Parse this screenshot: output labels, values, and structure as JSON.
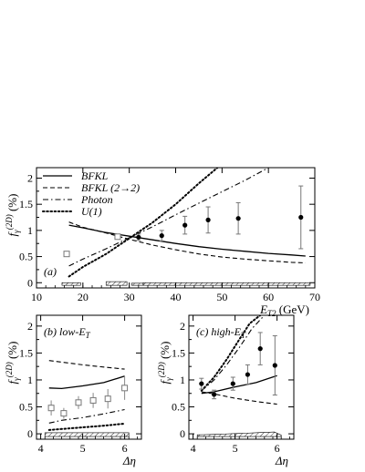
{
  "chart_data": [
    {
      "id": "a",
      "type": "line",
      "panel_label": "(a)",
      "ylabel": "f",
      "ylabel_sub": "γ",
      "ylabel_sup": "(2D)",
      "ylabel_unit": "(%)",
      "xlabel": "E",
      "xlabel_sub": "T2",
      "xlabel_unit": "(GeV)",
      "xlim": [
        10,
        70
      ],
      "ylim": [
        -0.1,
        2.2
      ],
      "xticks": [
        "10",
        "20",
        "30",
        "40",
        "50",
        "60",
        "70"
      ],
      "yticks": [
        "0",
        "0.5",
        "1",
        "1.5",
        "2"
      ],
      "legend": [
        "BFKL",
        "BFKL (2→2)",
        "Photon",
        "U(1)"
      ],
      "series": [
        {
          "name": "BFKL",
          "style": "solid",
          "x": [
            17,
            20,
            25,
            30,
            35,
            40,
            45,
            50,
            55,
            60,
            65,
            68
          ],
          "y": [
            1.1,
            1.05,
            0.96,
            0.89,
            0.82,
            0.75,
            0.69,
            0.64,
            0.6,
            0.56,
            0.53,
            0.51
          ]
        },
        {
          "name": "BFKL (2→2)",
          "style": "dashed",
          "x": [
            17,
            20,
            25,
            30,
            35,
            40,
            45,
            50,
            55,
            60,
            65,
            68
          ],
          "y": [
            1.16,
            1.06,
            0.95,
            0.83,
            0.72,
            0.63,
            0.55,
            0.49,
            0.45,
            0.42,
            0.39,
            0.38
          ]
        },
        {
          "name": "Photon",
          "style": "dashdot",
          "x": [
            17,
            20,
            25,
            30,
            35,
            40,
            45,
            50,
            55,
            60
          ],
          "y": [
            0.32,
            0.45,
            0.65,
            0.86,
            1.07,
            1.3,
            1.52,
            1.74,
            1.96,
            2.2
          ]
        },
        {
          "name": "U(1)",
          "style": "dotted",
          "x": [
            17,
            20,
            25,
            30,
            35,
            40,
            45,
            49
          ],
          "y": [
            0.12,
            0.3,
            0.55,
            0.85,
            1.15,
            1.5,
            1.9,
            2.2
          ]
        }
      ],
      "points_filled": [
        {
          "x": 32,
          "y": 0.87,
          "err": 0.06
        },
        {
          "x": 37,
          "y": 0.9,
          "err": 0.1
        },
        {
          "x": 42,
          "y": 1.1,
          "err": 0.17
        },
        {
          "x": 47,
          "y": 1.2,
          "err": 0.25
        },
        {
          "x": 53.5,
          "y": 1.23,
          "err": 0.3
        },
        {
          "x": 67,
          "y": 1.25,
          "err": 0.6
        }
      ],
      "points_open": [
        {
          "x": 16.5,
          "y": 0.55,
          "err": 0.04
        },
        {
          "x": 27.5,
          "y": 0.88,
          "err": 0.05
        }
      ],
      "syst_bands": [
        {
          "x0": 15.5,
          "x1": 19.5,
          "h": 0.05
        },
        {
          "x0": 25,
          "x1": 29.5,
          "h": 0.07
        },
        {
          "x0": 30.5,
          "x1": 33,
          "h": 0.04
        },
        {
          "x0": 33,
          "x1": 69,
          "h": 0.05
        }
      ]
    },
    {
      "id": "b",
      "type": "line",
      "panel_label": "(b) low-E",
      "panel_label_sub": "T",
      "ylabel": "f",
      "ylabel_sub": "γ",
      "ylabel_sup": "(2D)",
      "ylabel_unit": "(%)",
      "xlabel": "Δη",
      "xlim": [
        3.9,
        6.4
      ],
      "ylim": [
        -0.1,
        2.2
      ],
      "xticks": [
        "4",
        "5",
        "6"
      ],
      "yticks": [
        "0",
        "0.5",
        "1",
        "1.5",
        "2"
      ],
      "series": [
        {
          "name": "BFKL",
          "style": "solid",
          "x": [
            4.2,
            4.5,
            5.0,
            5.5,
            6.0
          ],
          "y": [
            0.85,
            0.84,
            0.89,
            0.95,
            1.07
          ]
        },
        {
          "name": "BFKL (2→2)",
          "style": "dashed",
          "x": [
            4.2,
            4.5,
            5.0,
            5.5,
            6.0
          ],
          "y": [
            1.36,
            1.33,
            1.28,
            1.24,
            1.2
          ]
        },
        {
          "name": "Photon",
          "style": "dashdot",
          "x": [
            4.2,
            4.5,
            5.0,
            5.5,
            6.0
          ],
          "y": [
            0.2,
            0.25,
            0.3,
            0.37,
            0.45
          ]
        },
        {
          "name": "U(1)",
          "style": "dotted",
          "x": [
            4.2,
            4.5,
            5.0,
            5.5,
            6.0
          ],
          "y": [
            0.07,
            0.09,
            0.12,
            0.15,
            0.19
          ]
        }
      ],
      "points_open": [
        {
          "x": 4.25,
          "y": 0.48,
          "err": 0.14
        },
        {
          "x": 4.55,
          "y": 0.38,
          "err": 0.1
        },
        {
          "x": 4.9,
          "y": 0.58,
          "err": 0.12
        },
        {
          "x": 5.25,
          "y": 0.62,
          "err": 0.14
        },
        {
          "x": 5.6,
          "y": 0.65,
          "err": 0.18
        },
        {
          "x": 6.0,
          "y": 0.85,
          "err": 0.22
        }
      ],
      "syst_bands": [
        {
          "x0": 4.1,
          "x1": 6.1,
          "h": 0.07
        }
      ]
    },
    {
      "id": "c",
      "type": "line",
      "panel_label": "(c) high-E",
      "panel_label_sub": "T",
      "ylabel": "f",
      "ylabel_sub": "γ",
      "ylabel_sup": "(2D)",
      "ylabel_unit": "(%)",
      "xlabel": "Δη",
      "xlim": [
        3.9,
        6.4
      ],
      "ylim": [
        -0.1,
        2.2
      ],
      "xticks": [
        "4",
        "5",
        "6"
      ],
      "yticks": [
        "0",
        "0.5",
        "1",
        "1.5",
        "2"
      ],
      "series": [
        {
          "name": "BFKL",
          "style": "solid",
          "x": [
            4.2,
            4.5,
            5.0,
            5.5,
            6.0
          ],
          "y": [
            0.75,
            0.78,
            0.87,
            0.95,
            1.08
          ]
        },
        {
          "name": "BFKL (2→2)",
          "style": "dashed",
          "x": [
            4.2,
            4.5,
            5.0,
            5.5,
            6.0
          ],
          "y": [
            0.78,
            0.74,
            0.66,
            0.6,
            0.55
          ]
        },
        {
          "name": "Photon",
          "style": "dashdot",
          "x": [
            4.2,
            4.5,
            4.8,
            5.1,
            5.4,
            5.7
          ],
          "y": [
            0.8,
            1.0,
            1.28,
            1.6,
            1.95,
            2.2
          ]
        },
        {
          "name": "U(1)",
          "style": "dotted",
          "x": [
            4.2,
            4.5,
            4.8,
            5.1,
            5.35,
            5.6
          ],
          "y": [
            0.8,
            1.05,
            1.38,
            1.75,
            2.05,
            2.2
          ]
        }
      ],
      "points_filled": [
        {
          "x": 4.2,
          "y": 0.93,
          "err": 0.1
        },
        {
          "x": 4.5,
          "y": 0.73,
          "err": 0.08
        },
        {
          "x": 4.95,
          "y": 0.93,
          "err": 0.12
        },
        {
          "x": 5.3,
          "y": 1.1,
          "err": 0.18
        },
        {
          "x": 5.6,
          "y": 1.58,
          "err": 0.3
        },
        {
          "x": 5.95,
          "y": 1.27,
          "err": 0.55
        }
      ],
      "syst_bands": [
        {
          "x0": 4.1,
          "x1": 6.1,
          "h": 0.09,
          "shape": "hump"
        }
      ]
    }
  ]
}
